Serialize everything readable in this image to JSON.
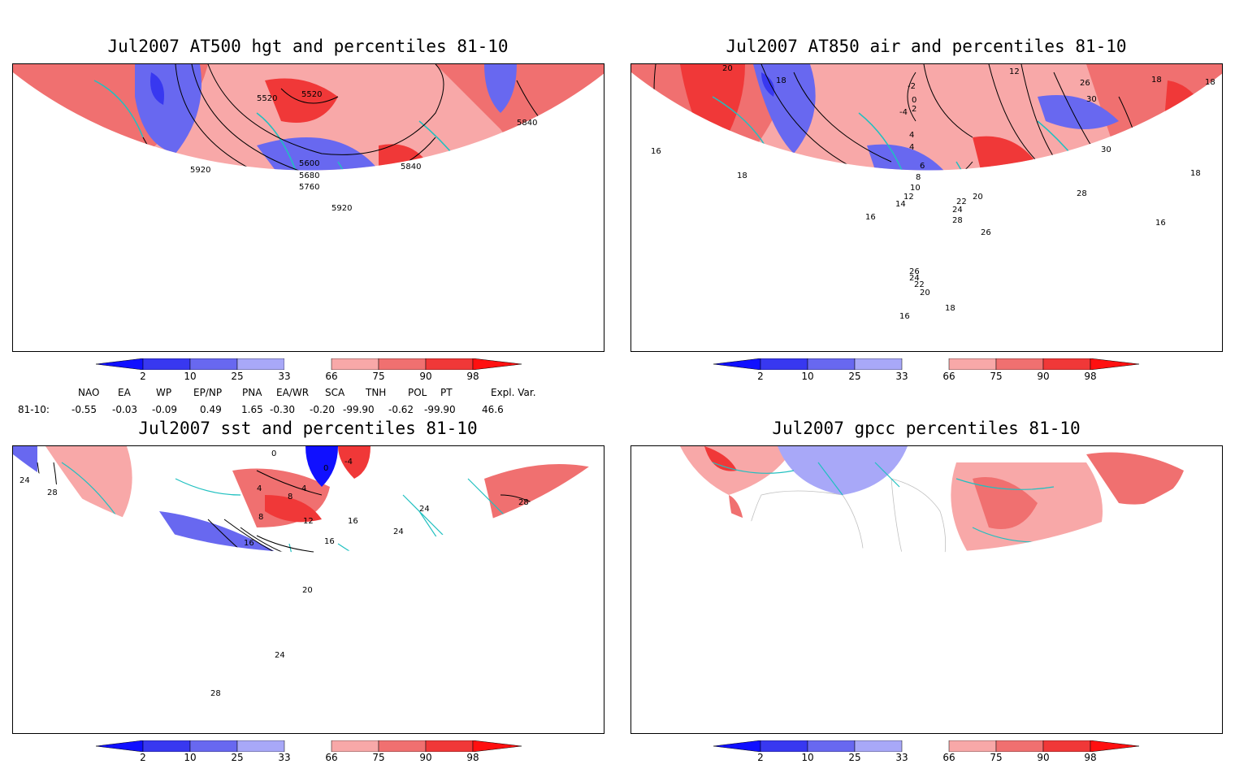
{
  "panels": [
    {
      "title": "Jul2007 AT500 hgt and percentiles 81-10",
      "contour_labels": [
        "5520",
        "5520",
        "5840",
        "5920",
        "5600",
        "5680",
        "5760",
        "5840",
        "5920"
      ]
    },
    {
      "title": "Jul2007 AT850 air and percentiles 81-10",
      "contour_labels": [
        "20",
        "18",
        "-2",
        "0",
        "2",
        "-4",
        "12",
        "26",
        "30",
        "18",
        "18",
        "16",
        "18",
        "4",
        "4",
        "6",
        "8",
        "10",
        "12",
        "14",
        "22",
        "24",
        "20",
        "28",
        "28",
        "18",
        "16",
        "16",
        "26",
        "26",
        "24",
        "22",
        "20",
        "18",
        "16",
        "30"
      ]
    },
    {
      "title": "Jul2007 sst and percentiles 81-10",
      "contour_labels": [
        "24",
        "28",
        "0",
        "4",
        "8",
        "12",
        "16",
        "16",
        "16",
        "20",
        "24",
        "24",
        "24",
        "28",
        "28",
        "4",
        "8",
        "-4",
        "0"
      ]
    },
    {
      "title": "Jul2007 gpcc percentiles 81-10",
      "contour_labels": []
    }
  ],
  "colorbar": {
    "labels": [
      "2",
      "10",
      "25",
      "33",
      "66",
      "75",
      "90",
      "98"
    ],
    "colors": {
      "deep_blue": "#1010ff",
      "blue": "#3838f0",
      "mid_blue": "#6868f0",
      "light_blue": "#a8a8f8",
      "light_red": "#f8a8a8",
      "mid_red": "#f07070",
      "red": "#f03838",
      "deep_red": "#ff1010"
    }
  },
  "indices": {
    "headers": [
      "NAO",
      "EA",
      "WP",
      "EP/NP",
      "PNA",
      "EA/WR",
      "SCA",
      "TNH",
      "POL",
      "PT",
      "Expl. Var."
    ],
    "row_label": "81-10:",
    "values": [
      "-0.55",
      "-0.03",
      "-0.09",
      "0.49",
      "1.65",
      "-0.30",
      "-0.20",
      "-99.90",
      "-0.62",
      "-99.90",
      "46.6"
    ]
  },
  "colors": {
    "coastline": "#20c0c0",
    "contour": "#000000",
    "background": "#ffffff"
  }
}
